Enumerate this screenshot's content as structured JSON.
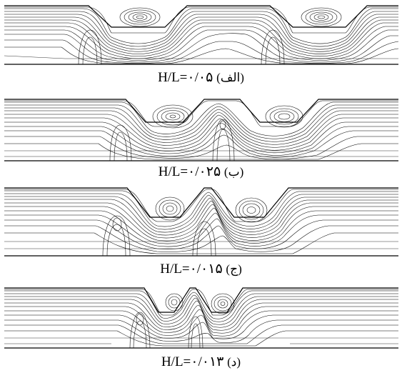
{
  "figure": {
    "panels": [
      {
        "id": "a",
        "ratio_prefix": "H/L=",
        "ratio_value": "۰/۰۵",
        "tag": "(الف)"
      },
      {
        "id": "b",
        "ratio_prefix": "H/L=",
        "ratio_value": "۰/۰۲۵",
        "tag": "(ب)"
      },
      {
        "id": "c",
        "ratio_prefix": "H/L=",
        "ratio_value": "۰/۰۱۵",
        "tag": "(ج)"
      },
      {
        "id": "d",
        "ratio_prefix": "H/L=",
        "ratio_value": "۰/۰۱۳",
        "tag": "(د)"
      }
    ]
  }
}
